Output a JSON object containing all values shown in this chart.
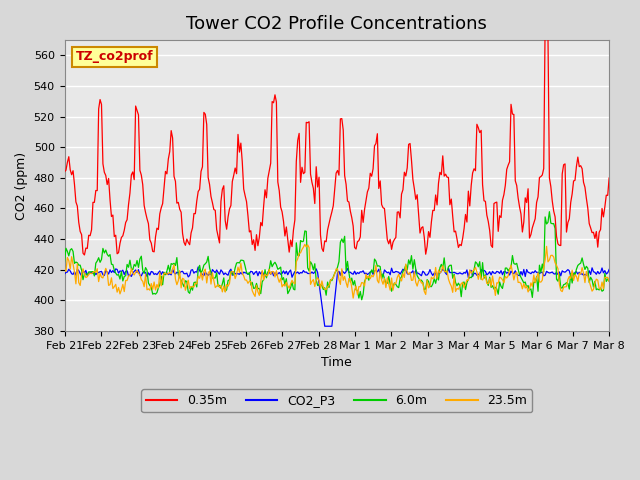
{
  "title": "Tower CO2 Profile Concentrations",
  "xlabel": "Time",
  "ylabel": "CO2 (ppm)",
  "ylim": [
    380,
    570
  ],
  "yticks": [
    380,
    400,
    420,
    440,
    460,
    480,
    500,
    520,
    540,
    560
  ],
  "x_labels": [
    "Feb 21",
    "Feb 22",
    "Feb 23",
    "Feb 24",
    "Feb 25",
    "Feb 26",
    "Feb 27",
    "Feb 28",
    "Mar 1",
    "Mar 2",
    "Mar 3",
    "Mar 4",
    "Mar 5",
    "Mar 6",
    "Mar 7",
    "Mar 8"
  ],
  "legend_labels": [
    "0.35m",
    "CO2_P3",
    "6.0m",
    "23.5m"
  ],
  "legend_colors": [
    "#ff0000",
    "#0000ff",
    "#00cc00",
    "#ffaa00"
  ],
  "annotation_text": "TZ_co2prof",
  "annotation_color": "#cc0000",
  "annotation_bg": "#ffff99",
  "annotation_border": "#cc8800",
  "title_fontsize": 13
}
